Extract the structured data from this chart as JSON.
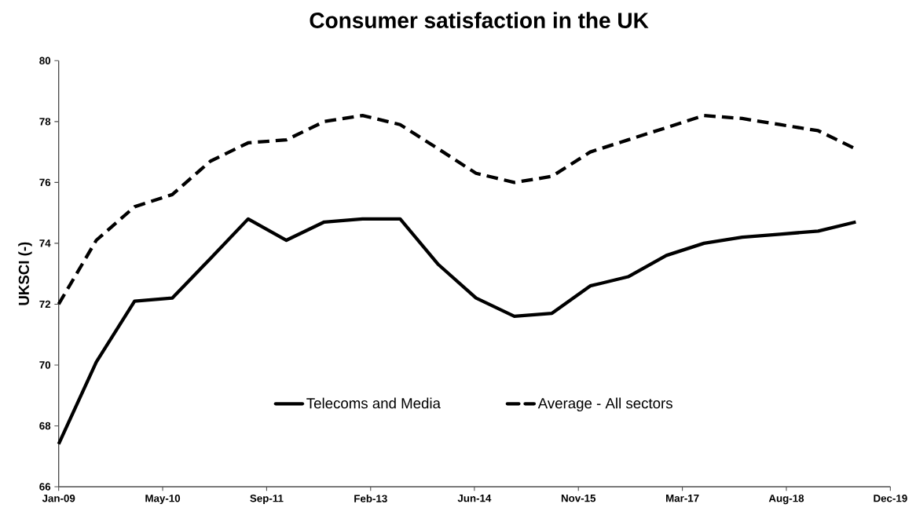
{
  "chart_data": {
    "type": "line",
    "title": "Consumer satisfaction in the UK",
    "ylabel": "UKSCI (-)",
    "x": [
      "2009-01-01",
      "2009-07-01",
      "2010-01-01",
      "2010-07-01",
      "2011-01-01",
      "2011-07-01",
      "2012-01-01",
      "2012-07-01",
      "2013-01-01",
      "2013-07-01",
      "2014-01-01",
      "2014-07-01",
      "2015-01-01",
      "2015-07-01",
      "2016-01-01",
      "2016-07-01",
      "2017-01-01",
      "2017-07-01",
      "2018-01-01",
      "2018-07-01",
      "2019-01-01",
      "2019-07-01"
    ],
    "series": [
      {
        "name": "Telecoms and Media",
        "color": "#000000",
        "line_style": "solid",
        "values": [
          67.4,
          70.1,
          72.1,
          72.2,
          73.5,
          74.8,
          74.1,
          74.7,
          74.8,
          74.8,
          73.3,
          72.2,
          71.6,
          71.7,
          72.6,
          72.9,
          73.6,
          74.0,
          74.2,
          74.3,
          74.4,
          74.7
        ]
      },
      {
        "name": "Average - All sectors",
        "color": "#000000",
        "line_style": "dashed",
        "values": [
          72.0,
          74.1,
          75.2,
          75.6,
          76.7,
          77.3,
          77.4,
          78.0,
          78.2,
          77.9,
          77.1,
          76.3,
          76.0,
          76.2,
          77.0,
          77.4,
          77.8,
          78.2,
          78.1,
          77.9,
          77.7,
          77.1
        ]
      }
    ],
    "xlim": [
      "2009-01-01",
      "2019-12-14"
    ],
    "xticks": [
      {
        "value": "2009-01-01",
        "label": "Jan-09"
      },
      {
        "value": "2010-05-16",
        "label": "May-10"
      },
      {
        "value": "2011-09-28",
        "label": "Sep-11"
      },
      {
        "value": "2013-02-09",
        "label": "Feb-13"
      },
      {
        "value": "2014-06-23",
        "label": "Jun-14"
      },
      {
        "value": "2015-11-05",
        "label": "Nov-15"
      },
      {
        "value": "2017-03-19",
        "label": "Mar-17"
      },
      {
        "value": "2018-08-01",
        "label": "Aug-18"
      },
      {
        "value": "2019-12-14",
        "label": "Dec-19"
      }
    ],
    "ylim": [
      66,
      80
    ],
    "yticks": [
      66,
      68,
      70,
      72,
      74,
      76,
      78,
      80
    ],
    "grid": false,
    "legend": "bottom",
    "marker": "none"
  }
}
